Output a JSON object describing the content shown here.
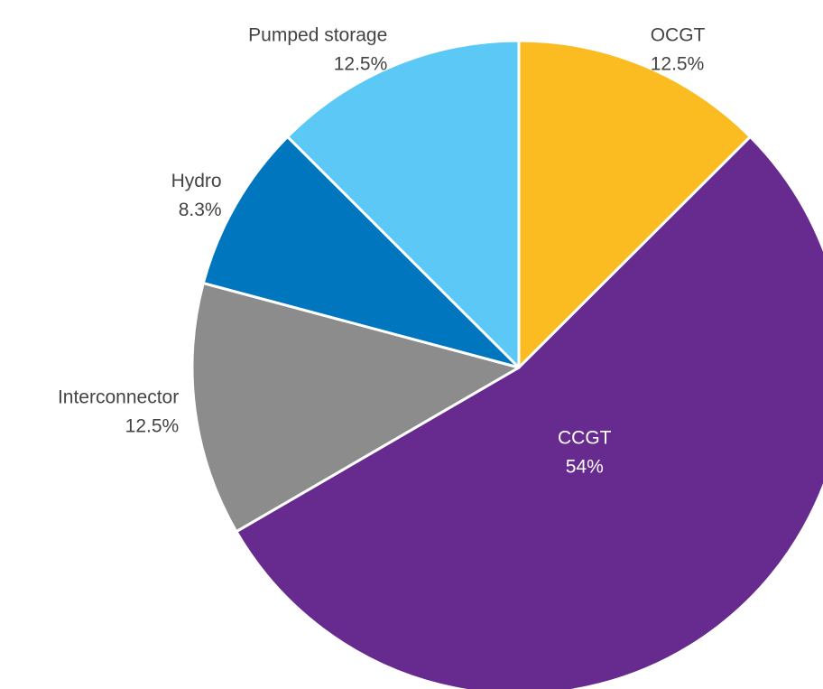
{
  "chart_data": {
    "type": "pie",
    "categories": [
      "OCGT",
      "CCGT",
      "Interconnector",
      "Hydro",
      "Pumped storage"
    ],
    "values": [
      12.5,
      54,
      12.5,
      8.3,
      12.5
    ],
    "value_labels": [
      "12.5%",
      "54%",
      "12.5%",
      "8.3%",
      "12.5%"
    ],
    "colors": [
      "#fbbc22",
      "#672a8e",
      "#8c8c8c",
      "#0076bf",
      "#5bc8f5"
    ]
  }
}
